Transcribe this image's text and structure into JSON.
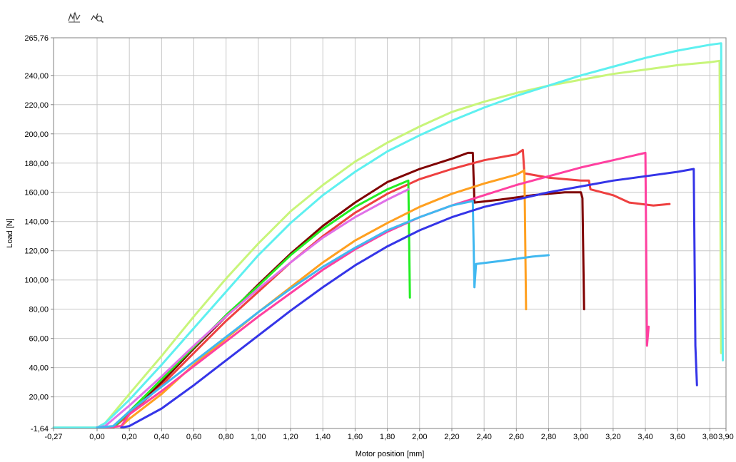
{
  "toolbar": {
    "buttons": [
      {
        "icon": "autoscale-icon"
      },
      {
        "icon": "zoom-icon"
      }
    ]
  },
  "chart_data": {
    "type": "line",
    "title": "",
    "xlabel": "Motor position [mm]",
    "ylabel": "Load [N]",
    "xlim": [
      -0.27,
      3.9
    ],
    "ylim": [
      -1.64,
      265.76
    ],
    "x_ticks": [
      -0.27,
      0.0,
      0.2,
      0.4,
      0.6,
      0.8,
      1.0,
      1.2,
      1.4,
      1.6,
      1.8,
      2.0,
      2.2,
      2.4,
      2.6,
      2.8,
      3.0,
      3.2,
      3.4,
      3.6,
      3.8,
      3.9
    ],
    "x_tick_labels": [
      "-0,27",
      "0,00",
      "0,20",
      "0,40",
      "0,60",
      "0,80",
      "1,00",
      "1,20",
      "1,40",
      "1,60",
      "1,80",
      "2,00",
      "2,20",
      "2,40",
      "2,60",
      "2,80",
      "3,00",
      "3,20",
      "3,40",
      "3,60",
      "3,80",
      "3,90"
    ],
    "y_ticks": [
      -1.64,
      20,
      40,
      60,
      80,
      100,
      120,
      140,
      160,
      180,
      200,
      220,
      240,
      265.76
    ],
    "y_tick_labels": [
      "-1,64",
      "20,00",
      "40,00",
      "60,00",
      "80,00",
      "100,00",
      "120,00",
      "140,00",
      "160,00",
      "180,00",
      "200,00",
      "220,00",
      "240,00",
      "265,76"
    ],
    "grid": true,
    "legend": "none",
    "series": [
      {
        "color": "#c8f57a",
        "points": [
          [
            -0.27,
            -1.0
          ],
          [
            0.0,
            -1.0
          ],
          [
            0.05,
            2
          ],
          [
            0.2,
            22
          ],
          [
            0.4,
            48
          ],
          [
            0.6,
            75
          ],
          [
            0.8,
            101
          ],
          [
            1.0,
            125
          ],
          [
            1.2,
            147
          ],
          [
            1.4,
            165
          ],
          [
            1.6,
            181
          ],
          [
            1.8,
            194
          ],
          [
            2.0,
            205
          ],
          [
            2.2,
            215
          ],
          [
            2.4,
            222
          ],
          [
            2.6,
            228
          ],
          [
            2.8,
            233
          ],
          [
            3.0,
            237
          ],
          [
            3.2,
            241
          ],
          [
            3.4,
            244
          ],
          [
            3.6,
            247
          ],
          [
            3.8,
            249
          ],
          [
            3.86,
            250
          ],
          [
            3.87,
            50
          ]
        ]
      },
      {
        "color": "#5ef0f0",
        "points": [
          [
            -0.27,
            -1.0
          ],
          [
            0.0,
            -1.0
          ],
          [
            0.05,
            2
          ],
          [
            0.2,
            18
          ],
          [
            0.4,
            42
          ],
          [
            0.6,
            67
          ],
          [
            0.8,
            92
          ],
          [
            1.0,
            117
          ],
          [
            1.2,
            139
          ],
          [
            1.4,
            158
          ],
          [
            1.6,
            174
          ],
          [
            1.8,
            188
          ],
          [
            2.0,
            199
          ],
          [
            2.2,
            209
          ],
          [
            2.4,
            218
          ],
          [
            2.6,
            226
          ],
          [
            2.8,
            233
          ],
          [
            3.0,
            240
          ],
          [
            3.2,
            246
          ],
          [
            3.4,
            252
          ],
          [
            3.6,
            257
          ],
          [
            3.8,
            261
          ],
          [
            3.87,
            262
          ],
          [
            3.88,
            45
          ]
        ]
      },
      {
        "color": "#7f0000",
        "points": [
          [
            0.0,
            -1.0
          ],
          [
            0.1,
            -1.0
          ],
          [
            0.2,
            8
          ],
          [
            0.4,
            30
          ],
          [
            0.6,
            53
          ],
          [
            0.8,
            75
          ],
          [
            1.0,
            97
          ],
          [
            1.2,
            118
          ],
          [
            1.4,
            137
          ],
          [
            1.6,
            153
          ],
          [
            1.8,
            167
          ],
          [
            2.0,
            176
          ],
          [
            2.2,
            183
          ],
          [
            2.3,
            187
          ],
          [
            2.33,
            187
          ],
          [
            2.34,
            153
          ],
          [
            2.5,
            155
          ],
          [
            2.7,
            158
          ],
          [
            2.9,
            160
          ],
          [
            3.0,
            160
          ],
          [
            3.01,
            156
          ],
          [
            3.02,
            80
          ]
        ]
      },
      {
        "color": "#ee4040",
        "points": [
          [
            0.0,
            -1.0
          ],
          [
            0.1,
            -1.0
          ],
          [
            0.2,
            8
          ],
          [
            0.4,
            28
          ],
          [
            0.6,
            50
          ],
          [
            0.8,
            72
          ],
          [
            1.0,
            92
          ],
          [
            1.2,
            112
          ],
          [
            1.4,
            130
          ],
          [
            1.6,
            146
          ],
          [
            1.8,
            159
          ],
          [
            2.0,
            169
          ],
          [
            2.2,
            176
          ],
          [
            2.4,
            182
          ],
          [
            2.6,
            186
          ],
          [
            2.64,
            189
          ],
          [
            2.65,
            173
          ],
          [
            2.8,
            170
          ],
          [
            3.0,
            168
          ],
          [
            3.05,
            168
          ],
          [
            3.06,
            162
          ],
          [
            3.2,
            158
          ],
          [
            3.3,
            153
          ],
          [
            3.45,
            151
          ],
          [
            3.55,
            152
          ]
        ]
      },
      {
        "color": "#22ee22",
        "points": [
          [
            0.0,
            -1.0
          ],
          [
            0.1,
            -1.0
          ],
          [
            0.2,
            10
          ],
          [
            0.4,
            32
          ],
          [
            0.6,
            54
          ],
          [
            0.8,
            76
          ],
          [
            1.0,
            96
          ],
          [
            1.2,
            117
          ],
          [
            1.4,
            135
          ],
          [
            1.6,
            150
          ],
          [
            1.8,
            162
          ],
          [
            1.93,
            168
          ],
          [
            1.94,
            88
          ]
        ]
      },
      {
        "color": "#e070e8",
        "points": [
          [
            0.0,
            -1.0
          ],
          [
            0.05,
            0
          ],
          [
            0.2,
            14
          ],
          [
            0.4,
            34
          ],
          [
            0.6,
            55
          ],
          [
            0.8,
            75
          ],
          [
            1.0,
            94
          ],
          [
            1.2,
            112
          ],
          [
            1.4,
            129
          ],
          [
            1.6,
            143
          ],
          [
            1.8,
            155
          ],
          [
            1.93,
            162
          ]
        ]
      },
      {
        "color": "#ffa020",
        "points": [
          [
            0.05,
            -1.0
          ],
          [
            0.15,
            0
          ],
          [
            0.2,
            5
          ],
          [
            0.4,
            22
          ],
          [
            0.6,
            42
          ],
          [
            0.8,
            60
          ],
          [
            1.0,
            78
          ],
          [
            1.2,
            95
          ],
          [
            1.4,
            112
          ],
          [
            1.6,
            127
          ],
          [
            1.8,
            139
          ],
          [
            2.0,
            150
          ],
          [
            2.2,
            159
          ],
          [
            2.4,
            166
          ],
          [
            2.6,
            172
          ],
          [
            2.65,
            175
          ],
          [
            2.66,
            80
          ]
        ]
      },
      {
        "color": "#ff40a0",
        "points": [
          [
            0.05,
            -1.0
          ],
          [
            0.15,
            0
          ],
          [
            0.2,
            8
          ],
          [
            0.4,
            24
          ],
          [
            0.6,
            41
          ],
          [
            0.8,
            58
          ],
          [
            1.0,
            75
          ],
          [
            1.2,
            91
          ],
          [
            1.4,
            107
          ],
          [
            1.6,
            121
          ],
          [
            1.8,
            133
          ],
          [
            2.0,
            143
          ],
          [
            2.2,
            151
          ],
          [
            2.4,
            158
          ],
          [
            2.6,
            165
          ],
          [
            2.8,
            171
          ],
          [
            3.0,
            177
          ],
          [
            3.2,
            182
          ],
          [
            3.4,
            187
          ],
          [
            3.41,
            55
          ],
          [
            3.42,
            68
          ]
        ]
      },
      {
        "color": "#40b8f0",
        "points": [
          [
            0.0,
            -1.0
          ],
          [
            0.1,
            0
          ],
          [
            0.2,
            10
          ],
          [
            0.4,
            27
          ],
          [
            0.6,
            44
          ],
          [
            0.8,
            61
          ],
          [
            1.0,
            78
          ],
          [
            1.2,
            94
          ],
          [
            1.4,
            109
          ],
          [
            1.6,
            122
          ],
          [
            1.8,
            134
          ],
          [
            2.0,
            143
          ],
          [
            2.2,
            151
          ],
          [
            2.33,
            154
          ],
          [
            2.34,
            95
          ],
          [
            2.35,
            111
          ],
          [
            2.5,
            113
          ],
          [
            2.7,
            116
          ],
          [
            2.8,
            117
          ]
        ]
      },
      {
        "color": "#3535e8",
        "points": [
          [
            0.15,
            -1.0
          ],
          [
            0.2,
            0
          ],
          [
            0.4,
            12
          ],
          [
            0.6,
            28
          ],
          [
            0.8,
            45
          ],
          [
            1.0,
            62
          ],
          [
            1.2,
            79
          ],
          [
            1.4,
            95
          ],
          [
            1.6,
            110
          ],
          [
            1.8,
            123
          ],
          [
            2.0,
            134
          ],
          [
            2.2,
            143
          ],
          [
            2.4,
            150
          ],
          [
            2.6,
            155
          ],
          [
            2.8,
            160
          ],
          [
            3.0,
            164
          ],
          [
            3.2,
            168
          ],
          [
            3.4,
            171
          ],
          [
            3.6,
            174
          ],
          [
            3.7,
            176
          ],
          [
            3.71,
            55
          ],
          [
            3.72,
            28
          ]
        ]
      }
    ]
  }
}
